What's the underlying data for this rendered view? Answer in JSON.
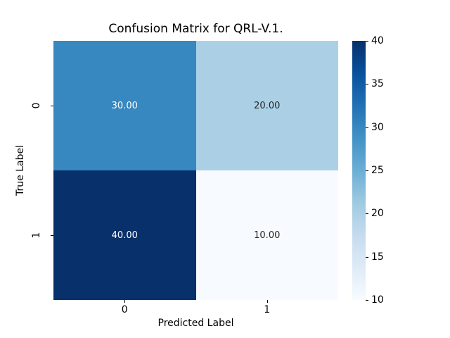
{
  "figure": {
    "background": "#ffffff"
  },
  "chart_data": {
    "type": "heatmap",
    "title": "Confusion Matrix for QRL-V.1.",
    "xlabel": "Predicted Label",
    "ylabel": "True Label",
    "x_ticklabels": [
      "0",
      "1"
    ],
    "y_ticklabels": [
      "0",
      "1"
    ],
    "matrix": [
      [
        30.0,
        20.0
      ],
      [
        40.0,
        10.0
      ]
    ],
    "cells": [
      {
        "row": 0,
        "col": 0,
        "value": 30.0,
        "label": "30.00",
        "bg": "#3787c0",
        "text_color": "#ffffff"
      },
      {
        "row": 0,
        "col": 1,
        "value": 20.0,
        "label": "20.00",
        "bg": "#abd0e6",
        "text_color": "#262626"
      },
      {
        "row": 1,
        "col": 0,
        "value": 40.0,
        "label": "40.00",
        "bg": "#08306b",
        "text_color": "#ffffff"
      },
      {
        "row": 1,
        "col": 1,
        "value": 10.0,
        "label": "10.00",
        "bg": "#f7fbff",
        "text_color": "#262626"
      }
    ],
    "colorbar": {
      "vmin": 10,
      "vmax": 40,
      "ticks_top_to_bottom": [
        "40",
        "35",
        "30",
        "25",
        "20",
        "15",
        "10"
      ],
      "colormap_name": "Blues",
      "colormap_stops_top_to_bottom": [
        "#08306b",
        "#08519c",
        "#2171b5",
        "#4292c6",
        "#6baed6",
        "#9ecae1",
        "#c6dbef",
        "#deebf7",
        "#f7fbff"
      ]
    },
    "grid": false,
    "legend_position": "right-colorbar"
  }
}
